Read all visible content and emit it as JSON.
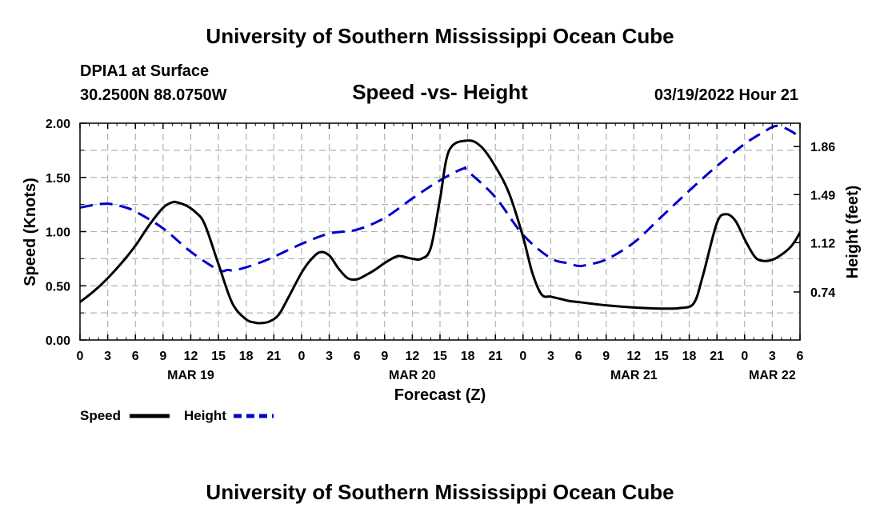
{
  "header": {
    "title": "University of Southern Mississippi Ocean Cube",
    "station": "DPIA1 at Surface",
    "coords": "30.2500N  88.0750W",
    "datetime": "03/19/2022 Hour 21",
    "footer_title": "University of Southern Mississippi Ocean Cube"
  },
  "chart_data": {
    "type": "line",
    "title": "Speed -vs- Height",
    "xlabel": "Forecast (Z)",
    "ylabel": "Speed (Knots)",
    "y2label": "Height (feet)",
    "x_unit": "hours since 03/19/2022 00Z",
    "xlim": [
      0,
      78
    ],
    "ylim": [
      0,
      2.0
    ],
    "y2lim": [
      0.37,
      2.04
    ],
    "yticks": [
      0,
      0.5,
      1.0,
      1.5,
      2.0
    ],
    "ytick_labels": [
      "0.00",
      "0.50",
      "1.00",
      "1.50",
      "2.00"
    ],
    "y2ticks": [
      0.74,
      1.12,
      1.49,
      1.86
    ],
    "y2tick_labels": [
      "0.74",
      "1.12",
      "1.49",
      "1.86"
    ],
    "xticks": [
      0,
      3,
      6,
      9,
      12,
      15,
      18,
      21,
      24,
      27,
      30,
      33,
      36,
      39,
      42,
      45,
      48,
      51,
      54,
      57,
      60,
      63,
      66,
      69,
      72,
      75,
      78
    ],
    "xtick_labels": [
      "0",
      "3",
      "6",
      "9",
      "12",
      "15",
      "18",
      "21",
      "0",
      "3",
      "6",
      "9",
      "12",
      "15",
      "18",
      "21",
      "0",
      "3",
      "6",
      "9",
      "12",
      "15",
      "18",
      "21",
      "0",
      "3",
      "6"
    ],
    "date_labels": [
      {
        "x": 12,
        "label": "MAR 19"
      },
      {
        "x": 36,
        "label": "MAR 20"
      },
      {
        "x": 60,
        "label": "MAR 21"
      },
      {
        "x": 75,
        "label": "MAR 22"
      }
    ],
    "grid": true,
    "legend_position": "bottom-left",
    "series": [
      {
        "name": "Speed",
        "axis": "left",
        "color": "#000000",
        "dash": "solid",
        "x": [
          0,
          1.5,
          3,
          4.5,
          6,
          7.5,
          9,
          10,
          10.5,
          11.5,
          12.5,
          13.5,
          15,
          16.5,
          18,
          19,
          19.5,
          20.5,
          21.5,
          22.5,
          24,
          25,
          26,
          27,
          28,
          29,
          30,
          31,
          32,
          33,
          34,
          34.5,
          35,
          36,
          37,
          38,
          39,
          40,
          42,
          43.5,
          45,
          46.5,
          48,
          49,
          50,
          51,
          52,
          53,
          54,
          57,
          60,
          63,
          65,
          66.5,
          67.5,
          69,
          70,
          71,
          72,
          72.5,
          73,
          73.5,
          74.5,
          75.5,
          77,
          78
        ],
        "values": [
          0.35,
          0.45,
          0.57,
          0.71,
          0.87,
          1.06,
          1.22,
          1.27,
          1.27,
          1.24,
          1.18,
          1.07,
          0.7,
          0.34,
          0.19,
          0.16,
          0.155,
          0.17,
          0.23,
          0.38,
          0.62,
          0.74,
          0.81,
          0.78,
          0.66,
          0.57,
          0.56,
          0.6,
          0.65,
          0.71,
          0.76,
          0.775,
          0.77,
          0.75,
          0.75,
          0.85,
          1.3,
          1.75,
          1.84,
          1.78,
          1.6,
          1.35,
          0.95,
          0.62,
          0.42,
          0.4,
          0.38,
          0.36,
          0.35,
          0.32,
          0.3,
          0.29,
          0.295,
          0.34,
          0.6,
          1.08,
          1.16,
          1.1,
          0.93,
          0.85,
          0.78,
          0.74,
          0.73,
          0.76,
          0.86,
          0.99
        ]
      },
      {
        "name": "Height",
        "axis": "right",
        "color": "#0000cc",
        "dash": "dashed",
        "x": [
          0,
          1.5,
          3,
          4.5,
          6,
          9,
          12,
          15,
          16,
          17,
          20,
          24,
          27,
          30,
          33,
          36,
          39,
          41.5,
          42,
          45,
          48,
          51,
          53,
          54,
          55,
          57,
          60,
          63,
          66,
          69,
          72,
          74,
          75.5,
          77,
          78
        ],
        "values": [
          1.39,
          1.41,
          1.42,
          1.4,
          1.36,
          1.23,
          1.05,
          0.91,
          0.91,
          0.91,
          0.98,
          1.11,
          1.19,
          1.22,
          1.31,
          1.46,
          1.6,
          1.69,
          1.67,
          1.47,
          1.18,
          1.0,
          0.96,
          0.94,
          0.95,
          0.99,
          1.12,
          1.32,
          1.52,
          1.71,
          1.88,
          1.97,
          2.02,
          1.98,
          1.93
        ]
      }
    ]
  }
}
